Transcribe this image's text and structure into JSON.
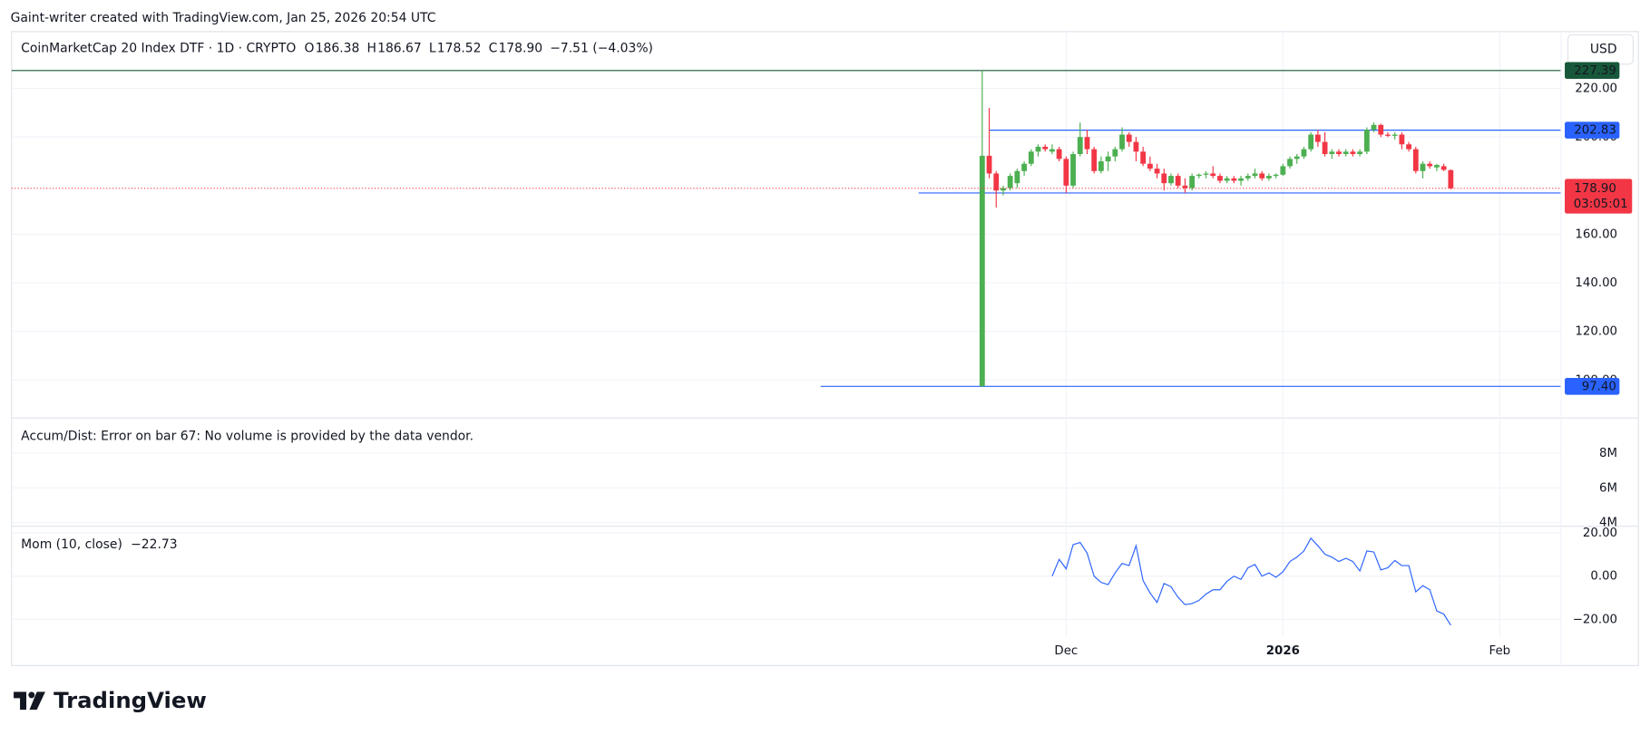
{
  "header": {
    "caption": "Gaint-writer created with TradingView.com, Jan 25, 2026 20:54 UTC",
    "currency": "USD",
    "brand": "TradingView"
  },
  "chart_data": [
    {
      "type": "candlestick",
      "title": "CoinMarketCap 20 Index DTF · 1D · CRYPTO",
      "legend": [
        {
          "key": "O",
          "value": "186.38"
        },
        {
          "key": "H",
          "value": "186.67"
        },
        {
          "key": "L",
          "value": "178.52"
        },
        {
          "key": "C",
          "value": "178.90"
        },
        {
          "key": "",
          "value": "−7.51 (−4.03%)"
        }
      ],
      "x": [
        0,
        1,
        2,
        3,
        4,
        5,
        6,
        7,
        8,
        9,
        10,
        11,
        12,
        13,
        14,
        15,
        16,
        17,
        18,
        19,
        20,
        21,
        22,
        23,
        24,
        25,
        26,
        27,
        28,
        29,
        30,
        31,
        32,
        33,
        34,
        35,
        36,
        37,
        38,
        39,
        40,
        41,
        42,
        43,
        44,
        45,
        46,
        47,
        48,
        49,
        50,
        51,
        52,
        53,
        54,
        55,
        56,
        57,
        58,
        59,
        60,
        61,
        62,
        63,
        64,
        65,
        66,
        67
      ],
      "open": [
        97.4,
        192.3,
        185,
        178,
        179,
        181,
        186,
        189,
        194,
        196,
        194,
        195,
        191,
        180,
        193,
        200,
        195,
        186,
        190,
        192,
        195,
        201,
        198,
        194,
        189,
        187,
        185,
        181,
        184,
        180,
        179,
        184,
        184.5,
        185,
        184,
        182,
        183,
        182,
        183,
        184,
        185,
        183,
        184,
        184.5,
        188,
        191,
        192,
        195,
        201,
        198,
        193,
        194,
        193,
        194,
        193,
        194,
        203,
        205,
        201,
        200.5,
        201,
        197,
        195,
        186,
        189,
        187.5,
        188,
        186.38
      ],
      "high": [
        227.39,
        212,
        186,
        180,
        185,
        187,
        190,
        195,
        197,
        197,
        197,
        196,
        192,
        194,
        206,
        203,
        196,
        192,
        194,
        196,
        204,
        202,
        200,
        196,
        192,
        189,
        187,
        185,
        185,
        183,
        185,
        185,
        186,
        188,
        185,
        184,
        184,
        184,
        185,
        187,
        186,
        185,
        185,
        189,
        192,
        193,
        196,
        202,
        203,
        202,
        195,
        195,
        195,
        195,
        195,
        204,
        206,
        205.5,
        202,
        202,
        202,
        198,
        196,
        190,
        190,
        189,
        189,
        186.67
      ],
      "low": [
        97.4,
        183,
        171,
        176,
        178,
        179,
        184,
        188,
        192,
        194,
        193,
        190,
        177,
        179,
        192,
        193,
        185,
        185,
        186,
        190,
        194,
        196,
        190,
        188,
        186,
        183,
        178,
        180,
        179,
        177,
        178,
        183,
        183,
        183,
        181,
        181,
        181,
        180,
        182,
        183,
        182,
        182,
        183,
        184,
        187,
        189,
        191,
        194,
        196,
        192,
        191,
        192,
        192,
        192,
        192,
        193,
        202,
        200,
        200,
        199,
        195,
        194,
        185,
        183,
        187,
        186,
        186,
        178.52
      ],
      "close": [
        192.3,
        185,
        178,
        179,
        184,
        186,
        189,
        194,
        196,
        195,
        195,
        191,
        180,
        193,
        200,
        195,
        186,
        190,
        192,
        195,
        201,
        198,
        194,
        189,
        187,
        185,
        181,
        184,
        180,
        179,
        184,
        184.5,
        185,
        184,
        182,
        183,
        182,
        183,
        184,
        185,
        183,
        184,
        184.5,
        188,
        191,
        192,
        195,
        201,
        198,
        193,
        194,
        193,
        194,
        193,
        194,
        203,
        205,
        201,
        200.5,
        201,
        197,
        195,
        186,
        189,
        188,
        188.5,
        186.5,
        178.9
      ],
      "up_color": "#4caf50",
      "down_color": "#f23645",
      "xlim": [
        -138.8,
        82.7
      ],
      "ylim": [
        84.6,
        243.4
      ],
      "yticks": [
        {
          "value": 100,
          "label": "100.00"
        },
        {
          "value": 120,
          "label": "120.00"
        },
        {
          "value": 140,
          "label": "140.00"
        },
        {
          "value": 160,
          "label": "160.00"
        },
        {
          "value": 200,
          "label": "200.00"
        },
        {
          "value": 220,
          "label": "220.00"
        }
      ],
      "grid": true,
      "levels": [
        {
          "value": 227.39,
          "color": "#17583a"
        },
        {
          "value": 202.83,
          "color": "#2962ff",
          "start": 1
        },
        {
          "value": 176.97,
          "color": "#2962ff",
          "start": -9.1
        },
        {
          "value": 97.4,
          "label": "97.40",
          "color": "#2962ff",
          "start": -23.1
        }
      ],
      "last_price": {
        "value": 178.9,
        "label": "178.90",
        "countdown": "03:05:01",
        "color": "#f23645"
      }
    },
    {
      "type": "empty",
      "title": "Accum/Dist: Error on bar 67: No volume is provided by the data vendor.",
      "ylim": [
        3820000,
        10000000
      ],
      "yticks": [
        {
          "value": 4000000,
          "label": "4M"
        },
        {
          "value": 6000000,
          "label": "6M"
        },
        {
          "value": 8000000,
          "label": "8M"
        }
      ],
      "grid": true
    },
    {
      "type": "line",
      "title": "Mom (10, close)",
      "value_label": "−22.73",
      "color": "#2962ff",
      "x": [
        10,
        11,
        12,
        13,
        14,
        15,
        16,
        17,
        18,
        19,
        20,
        21,
        22,
        23,
        24,
        25,
        26,
        27,
        28,
        29,
        30,
        31,
        32,
        33,
        34,
        35,
        36,
        37,
        38,
        39,
        40,
        41,
        42,
        43,
        44,
        45,
        46,
        47,
        48,
        49,
        50,
        51,
        52,
        53,
        54,
        55,
        56,
        57,
        58,
        59,
        60,
        61,
        62,
        63,
        64,
        65,
        66,
        67
      ],
      "values": [
        0,
        7.8,
        3.4,
        14.6,
        15.6,
        10.7,
        0,
        -2.9,
        -3.9,
        1.5,
        5.9,
        4.9,
        14.1,
        -2,
        -7.8,
        -12.2,
        -3.4,
        -4.9,
        -9.8,
        -13.2,
        -12.7,
        -11.2,
        -8.3,
        -6.3,
        -6.3,
        -2.4,
        0,
        -1.5,
        3.9,
        5.4,
        0,
        1.5,
        -0.5,
        2,
        6.8,
        8.8,
        11.7,
        17.6,
        14.1,
        10.2,
        8.8,
        6.8,
        8.3,
        6.8,
        2.4,
        11.7,
        11.2,
        2.9,
        3.9,
        7.3,
        4.9,
        4.9,
        -7.3,
        -4.4,
        -6.3,
        -16.1,
        -17.6,
        -22.73
      ],
      "xlim": [
        -138.8,
        82.7
      ],
      "ylim": [
        -27.8,
        22.9
      ],
      "yticks": [
        {
          "value": -20,
          "label": "−20.00"
        },
        {
          "value": 0,
          "label": "0.00"
        },
        {
          "value": 20,
          "label": "20.00"
        }
      ],
      "xticks": [
        {
          "value": 12,
          "label": "Dec"
        },
        {
          "value": 43,
          "label": "2026"
        },
        {
          "value": 74,
          "label": "Feb"
        }
      ],
      "grid": true
    }
  ]
}
